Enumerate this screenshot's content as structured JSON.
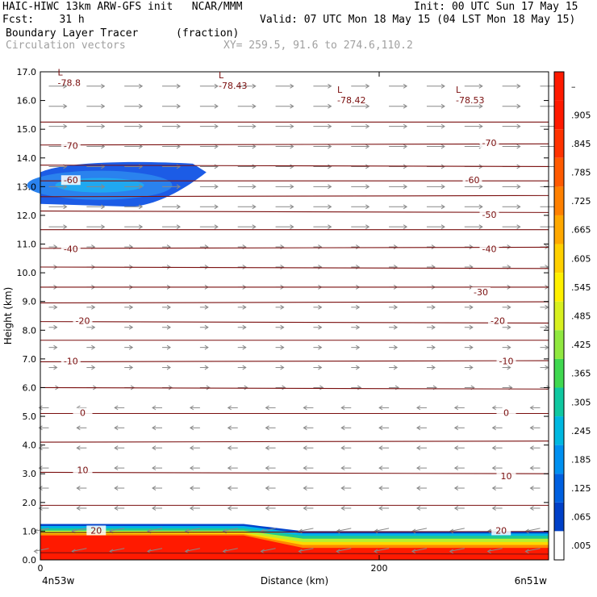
{
  "header": {
    "line1_left": "HAIC-HIWC 13km ARW-GFS init   NCAR/MMM",
    "line1_right": "Init: 00 UTC Sun 17 May 15",
    "line2_left": "Fcst:    31 h",
    "line2_right": "Valid: 07 UTC Mon 18 May 15 (04 LST Mon 18 May 15)",
    "line3_left": "Boundary Layer Tracer",
    "line3_units": "(fraction)",
    "line4_left": "Circulation vectors",
    "line4_xy": "XY= 259.5, 91.6 to 274.6,110.2"
  },
  "chart_data": {
    "type": "contour",
    "xlabel": "Distance (km)",
    "ylabel": "Height (km)",
    "xlim": [
      0,
      300
    ],
    "ylim": [
      0,
      17
    ],
    "x_ticks": [
      0,
      200
    ],
    "y_ticks": [
      "0.0",
      "1.0",
      "2.0",
      "3.0",
      "4.0",
      "5.0",
      "6.0",
      "7.0",
      "8.0",
      "9.0",
      "10.0",
      "11.0",
      "12.0",
      "13.0",
      "14.0",
      "15.0",
      "16.0",
      "17.0"
    ],
    "x_end_labels": {
      "left": "4n53w",
      "right": "6n51w"
    },
    "colorbar_labels": [
      "–",
      ".905",
      ".845",
      ".785",
      ".725",
      ".665",
      ".605",
      ".545",
      ".485",
      ".425",
      ".365",
      ".305",
      ".245",
      ".185",
      ".125",
      ".065",
      ".005"
    ],
    "colorbar_colors": [
      "#ff1a00",
      "#ff1a00",
      "#ff3300",
      "#ff5a00",
      "#ff8000",
      "#ffa800",
      "#ffd000",
      "#fff000",
      "#d8f020",
      "#90e840",
      "#40d850",
      "#10c8a0",
      "#00b8e0",
      "#0090f0",
      "#0060e0",
      "#0040c8",
      "#ffffff"
    ],
    "temperature_labels": [
      {
        "text": "-70",
        "x": 18,
        "y": 14.4
      },
      {
        "text": "-70",
        "x": 265,
        "y": 14.5
      },
      {
        "text": "-60",
        "x": 18,
        "y": 13.2
      },
      {
        "text": "-60",
        "x": 255,
        "y": 13.2
      },
      {
        "text": "-50",
        "x": 265,
        "y": 12.0
      },
      {
        "text": "-40",
        "x": 18,
        "y": 10.8
      },
      {
        "text": "-40",
        "x": 265,
        "y": 10.8
      },
      {
        "text": "-30",
        "x": 260,
        "y": 9.3
      },
      {
        "text": "-20",
        "x": 25,
        "y": 8.3
      },
      {
        "text": "-20",
        "x": 270,
        "y": 8.3
      },
      {
        "text": "-10",
        "x": 18,
        "y": 6.9
      },
      {
        "text": "-10",
        "x": 275,
        "y": 6.9
      },
      {
        "text": "0",
        "x": 25,
        "y": 5.1
      },
      {
        "text": "0",
        "x": 275,
        "y": 5.1
      },
      {
        "text": "10",
        "x": 25,
        "y": 3.1
      },
      {
        "text": "10",
        "x": 275,
        "y": 2.9
      },
      {
        "text": "20",
        "x": 33,
        "y": 1.0
      },
      {
        "text": "20",
        "x": 272,
        "y": 1.0
      }
    ],
    "low_labels": [
      {
        "text": "-78.8",
        "x": 15,
        "y": 16.7
      },
      {
        "text": "-78.43",
        "x": 110,
        "y": 16.6
      },
      {
        "text": "-78.42",
        "x": 180,
        "y": 16.1
      },
      {
        "text": "-78.53",
        "x": 250,
        "y": 16.1
      }
    ]
  }
}
